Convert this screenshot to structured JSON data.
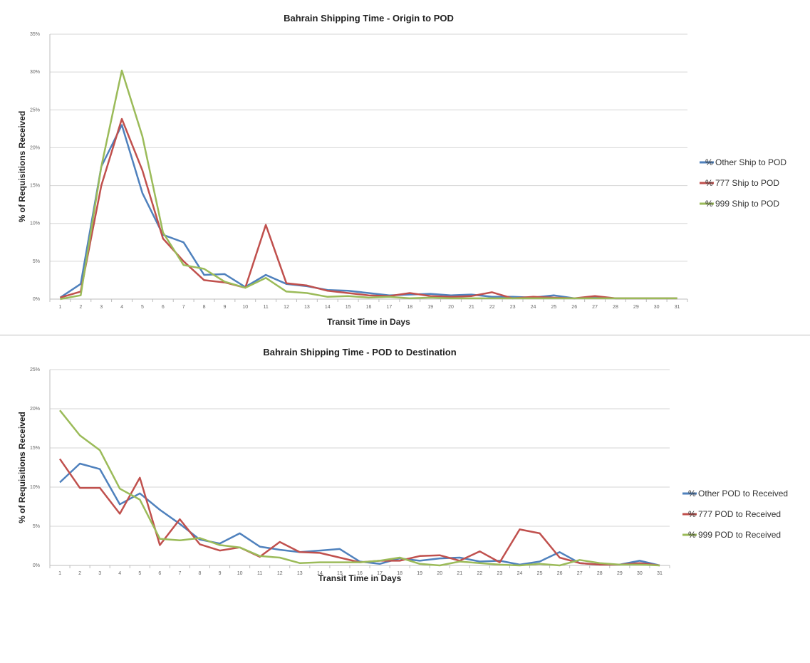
{
  "chart_data": [
    {
      "type": "line",
      "title": "Bahrain Shipping Time - Origin to POD",
      "xlabel": "Transit Time in Days",
      "ylabel": "% of Requisitions Received",
      "x": [
        "1",
        "2",
        "3",
        "4",
        "5",
        "6",
        "7",
        "8",
        "9",
        "10",
        "11",
        "12",
        "13",
        "14",
        "15",
        "16",
        "17",
        "18",
        "19",
        "20",
        "21",
        "22",
        "23",
        "24",
        "25",
        "26",
        "27",
        "28",
        "29",
        "30",
        "31"
      ],
      "y_ticks": [
        "0%",
        "5%",
        "10%",
        "15%",
        "20%",
        "25%",
        "30%",
        "35%"
      ],
      "ylim": [
        0,
        35
      ],
      "grid": true,
      "legend_position": "right",
      "series": [
        {
          "name": "% Other Ship to POD",
          "color": "#4f81bd",
          "values": [
            0.2,
            2.0,
            17.5,
            23.0,
            14.0,
            8.5,
            7.5,
            3.2,
            3.3,
            1.6,
            3.2,
            2.0,
            1.7,
            1.2,
            1.1,
            0.8,
            0.5,
            0.6,
            0.7,
            0.5,
            0.6,
            0.3,
            0.3,
            0.2,
            0.5,
            0.1,
            0.2,
            0.1,
            0.1,
            0.1,
            0.1
          ]
        },
        {
          "name": "% 777 Ship to POD",
          "color": "#c0504d",
          "values": [
            0.2,
            1.0,
            15.0,
            23.8,
            17.0,
            8.0,
            5.0,
            2.5,
            2.2,
            1.5,
            9.8,
            2.1,
            1.8,
            1.1,
            0.8,
            0.5,
            0.4,
            0.8,
            0.4,
            0.3,
            0.4,
            0.9,
            0.1,
            0.3,
            0.2,
            0.1,
            0.4,
            0.1,
            0.1,
            0.1,
            0.1
          ]
        },
        {
          "name": "% 999 Ship to POD",
          "color": "#9bbb59",
          "values": [
            0.0,
            0.5,
            17.5,
            30.2,
            21.5,
            8.8,
            4.5,
            4.0,
            2.3,
            1.5,
            2.8,
            1.0,
            0.8,
            0.3,
            0.4,
            0.2,
            0.3,
            0.1,
            0.2,
            0.1,
            0.1,
            0.1,
            0.1,
            0.1,
            0.1,
            0.1,
            0.1,
            0.1,
            0.1,
            0.1,
            0.1
          ]
        }
      ]
    },
    {
      "type": "line",
      "title": "Bahrain Shipping Time - POD to Destination",
      "xlabel": "Transit Time in Days",
      "ylabel": "% of Requisitions Received",
      "x": [
        "1",
        "2",
        "3",
        "4",
        "5",
        "6",
        "7",
        "8",
        "9",
        "10",
        "11",
        "12",
        "13",
        "14",
        "15",
        "16",
        "17",
        "18",
        "19",
        "20",
        "21",
        "22",
        "23",
        "24",
        "25",
        "26",
        "27",
        "28",
        "29",
        "30",
        "31"
      ],
      "y_ticks": [
        "0%",
        "5%",
        "10%",
        "15%",
        "20%",
        "25%"
      ],
      "ylim": [
        0,
        25
      ],
      "grid": true,
      "legend_position": "right",
      "series": [
        {
          "name": "% Other POD to Received",
          "color": "#4f81bd",
          "values": [
            10.6,
            13.0,
            12.3,
            7.8,
            9.2,
            7.1,
            5.3,
            3.3,
            2.8,
            4.1,
            2.4,
            2.0,
            1.7,
            1.9,
            2.1,
            0.5,
            0.2,
            0.9,
            0.6,
            0.9,
            1.0,
            0.5,
            0.6,
            0.1,
            0.5,
            1.7,
            0.3,
            0.1,
            0.1,
            0.6,
            0.0
          ]
        },
        {
          "name": "% 777 POD to Received",
          "color": "#c0504d",
          "values": [
            13.6,
            9.9,
            9.9,
            6.6,
            11.2,
            2.6,
            5.9,
            2.7,
            1.9,
            2.3,
            1.1,
            3.0,
            1.7,
            1.6,
            1.0,
            0.4,
            0.6,
            0.6,
            1.2,
            1.3,
            0.6,
            1.8,
            0.4,
            4.6,
            4.1,
            1.0,
            0.3,
            0.1,
            0.1,
            0.3,
            0.0
          ]
        },
        {
          "name": "% 999 POD to Received",
          "color": "#9bbb59",
          "values": [
            19.8,
            16.6,
            14.7,
            9.8,
            8.4,
            3.4,
            3.2,
            3.5,
            2.6,
            2.3,
            1.2,
            1.0,
            0.3,
            0.4,
            0.4,
            0.4,
            0.6,
            1.0,
            0.2,
            0.0,
            0.5,
            0.3,
            0.1,
            0.0,
            0.2,
            0.0,
            0.7,
            0.3,
            0.1,
            0.1,
            0.0
          ]
        }
      ]
    }
  ]
}
